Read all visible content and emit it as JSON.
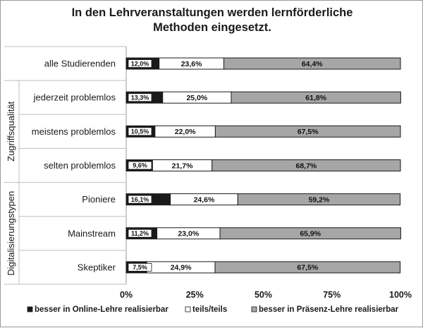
{
  "chart_data": {
    "type": "bar",
    "orientation": "horizontal",
    "stacked": true,
    "title_lines": [
      "In den Lehrveranstaltungen werden lernförderliche",
      "Methoden eingesetzt."
    ],
    "categories": [
      "alle Studierenden",
      "jederzeit problemlos",
      "meistens problemlos",
      "selten problemlos",
      "Pioniere",
      "Mainstream",
      "Skeptiker"
    ],
    "groups": [
      {
        "label": "Zugriffsqualität",
        "categories": [
          "jederzeit problemlos",
          "meistens problemlos",
          "selten problemlos"
        ]
      },
      {
        "label": "Digitalisierungstypen",
        "categories": [
          "Pioniere",
          "Mainstream",
          "Skeptiker"
        ]
      }
    ],
    "series": [
      {
        "name": "besser in Online-Lehre realisierbar",
        "color": "#1a1a1a",
        "values": [
          12.0,
          13.3,
          10.5,
          9.6,
          16.1,
          11.2,
          7.5
        ],
        "labels": [
          "12,0%",
          "13,3%",
          "10,5%",
          "9,6%",
          "16,1%",
          "11,2%",
          "7,5%"
        ]
      },
      {
        "name": "teils/teils",
        "color": "#ffffff",
        "values": [
          23.6,
          25.0,
          22.0,
          21.7,
          24.6,
          23.0,
          24.9
        ],
        "labels": [
          "23,6%",
          "25,0%",
          "22,0%",
          "21,7%",
          "24,6%",
          "23,0%",
          "24,9%"
        ]
      },
      {
        "name": "besser in Präsenz-Lehre realisierbar",
        "color": "#a6a6a6",
        "values": [
          64.4,
          61.8,
          67.5,
          68.7,
          59.2,
          65.9,
          67.5
        ],
        "labels": [
          "64,4%",
          "61,8%",
          "67,5%",
          "68,7%",
          "59,2%",
          "65,9%",
          "67,5%"
        ]
      }
    ],
    "xlim": [
      0,
      100
    ],
    "x_ticks": [
      0,
      25,
      50,
      75,
      100
    ],
    "x_tick_labels": [
      "0%",
      "25%",
      "50%",
      "75%",
      "100%"
    ],
    "legend_position": "bottom",
    "grid": false
  }
}
